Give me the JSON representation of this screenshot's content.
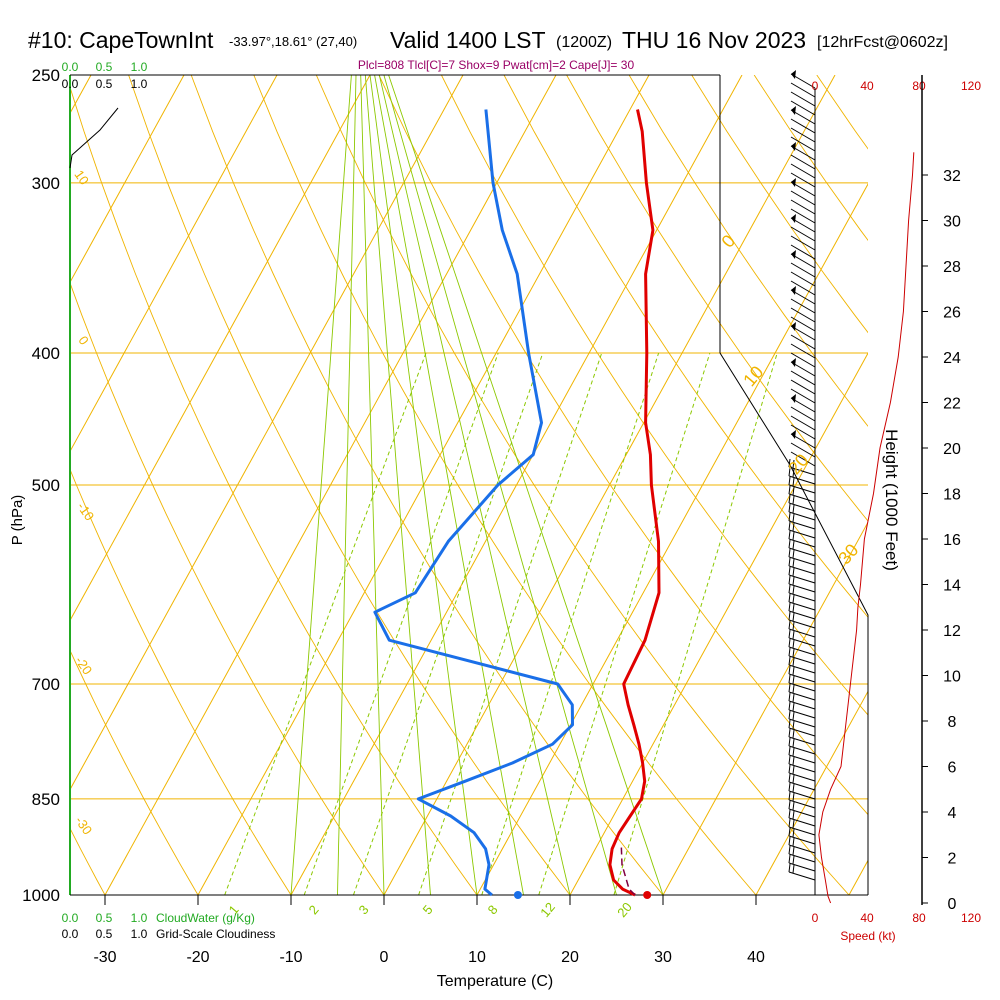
{
  "header": {
    "station": "#10: CapeTownInt",
    "coords": "-33.97°,18.61° (27,40)",
    "valid": "Valid 1400 LST",
    "zulu": "(1200Z)",
    "date": "THU 16 Nov 2023",
    "forecast": "[12hrFcst@0602z]",
    "indices": "Plcl=808 Tlcl[C]=7 Shox=9 Pwat[cm]=2 Cape[J]= 30"
  },
  "colors": {
    "temperature": "#e00000",
    "dewpoint": "#1a6fe8",
    "isotherm": "#f0b400",
    "dry_adiabat": "#f0b400",
    "moist_adiabat": "#8cc800",
    "mixing_ratio": "#8cc800",
    "cloud_scale": "#22aa22",
    "speed_profile": "#cc0000",
    "parcel": "#800040"
  },
  "chart_data": {
    "type": "line",
    "xlabel": "Temperature (C)",
    "ylabel": "P (hPa)",
    "right_axis_label": "Height (1000 Feet)",
    "speed_label": "Speed (kt)",
    "x_ticks": [
      -30,
      -20,
      -10,
      0,
      10,
      20,
      30,
      40
    ],
    "x_tick_labels": [
      "-30",
      "-20",
      "-10",
      "0",
      "10",
      "20",
      "30",
      "40"
    ],
    "pressure_ticks": [
      250,
      300,
      400,
      500,
      700,
      850,
      1000
    ],
    "pressure_tick_labels": [
      "250",
      "300",
      "400",
      "500",
      "700",
      "850",
      "1000"
    ],
    "height_ticks": [
      0,
      2,
      4,
      6,
      8,
      10,
      12,
      14,
      16,
      18,
      20,
      22,
      24,
      26,
      28,
      30,
      32
    ],
    "height_tick_labels": [
      "0",
      "2",
      "4",
      "6",
      "8",
      "10",
      "12",
      "14",
      "16",
      "18",
      "20",
      "22",
      "24",
      "26",
      "28",
      "30",
      "32"
    ],
    "speed_ticks": [
      0,
      40,
      80,
      120
    ],
    "speed_tick_labels": [
      "0",
      "40",
      "80",
      "120"
    ],
    "cloud_ticks": [
      "0.0",
      "0.5",
      "1.0"
    ],
    "cloud_water_label": "CloudWater (g/Kg)",
    "cloudiness_label": "Grid-Scale Cloudiness",
    "isotherm_labels": [
      "0",
      "10",
      "20",
      "30"
    ],
    "dry_adiabat_labels": [
      "10",
      "0",
      "-10",
      "-20",
      "-30"
    ],
    "mixing_ratio_labels": [
      "1",
      "2",
      "3",
      "5",
      "8",
      "12",
      "20"
    ],
    "series": [
      {
        "name": "Temperature",
        "points": [
          [
            1000,
            27.0
          ],
          [
            990,
            25.3
          ],
          [
            975,
            23.8
          ],
          [
            950,
            22.5
          ],
          [
            925,
            21.8
          ],
          [
            900,
            21.6
          ],
          [
            875,
            21.8
          ],
          [
            850,
            22.0
          ],
          [
            825,
            21.3
          ],
          [
            800,
            20.0
          ],
          [
            775,
            18.5
          ],
          [
            750,
            16.8
          ],
          [
            725,
            15.0
          ],
          [
            700,
            13.3
          ],
          [
            650,
            13.0
          ],
          [
            600,
            11.7
          ],
          [
            550,
            8.6
          ],
          [
            500,
            4.5
          ],
          [
            475,
            2.6
          ],
          [
            450,
            0.2
          ],
          [
            400,
            -3.8
          ],
          [
            350,
            -8.6
          ],
          [
            325,
            -10.4
          ],
          [
            300,
            -13.9
          ],
          [
            275,
            -17.4
          ],
          [
            265,
            -19.2
          ]
        ]
      },
      {
        "name": "Dewpoint",
        "points": [
          [
            1000,
            11.6
          ],
          [
            990,
            10.5
          ],
          [
            950,
            9.5
          ],
          [
            925,
            8.2
          ],
          [
            900,
            6.0
          ],
          [
            875,
            2.5
          ],
          [
            850,
            -2.0
          ],
          [
            825,
            2.0
          ],
          [
            800,
            6.0
          ],
          [
            775,
            9.2
          ],
          [
            750,
            10.2
          ],
          [
            725,
            9.0
          ],
          [
            700,
            6.2
          ],
          [
            650,
            -14.5
          ],
          [
            620,
            -17.7
          ],
          [
            600,
            -14.5
          ],
          [
            550,
            -14.0
          ],
          [
            500,
            -12.0
          ],
          [
            475,
            -10.0
          ],
          [
            450,
            -11.0
          ],
          [
            400,
            -16.5
          ],
          [
            350,
            -22.4
          ],
          [
            325,
            -26.6
          ],
          [
            300,
            -30.4
          ],
          [
            265,
            -35.5
          ]
        ]
      }
    ],
    "parcel_path": [
      [
        1000,
        27.0
      ],
      [
        990,
        26.0
      ],
      [
        950,
        23.8
      ],
      [
        920,
        22.6
      ]
    ],
    "surface_markers": {
      "temperature": 28.3,
      "dewpoint": 14.4
    },
    "wind_speed_profile": [
      [
        0.0,
        12
      ],
      [
        0.3,
        10
      ],
      [
        1.0,
        8
      ],
      [
        2.0,
        5
      ],
      [
        3.0,
        3
      ],
      [
        4.0,
        6
      ],
      [
        5.0,
        12
      ],
      [
        6.0,
        20
      ],
      [
        8.0,
        24
      ],
      [
        10.0,
        28
      ],
      [
        11.0,
        30
      ],
      [
        12.0,
        32
      ],
      [
        13.0,
        33
      ],
      [
        14.0,
        35
      ],
      [
        16.0,
        38
      ],
      [
        18.0,
        45
      ],
      [
        20.0,
        50
      ],
      [
        22.0,
        58
      ],
      [
        24.0,
        64
      ],
      [
        26.0,
        68
      ],
      [
        28.0,
        70
      ],
      [
        30.0,
        72
      ],
      [
        32.0,
        75
      ],
      [
        33.0,
        76
      ]
    ]
  }
}
